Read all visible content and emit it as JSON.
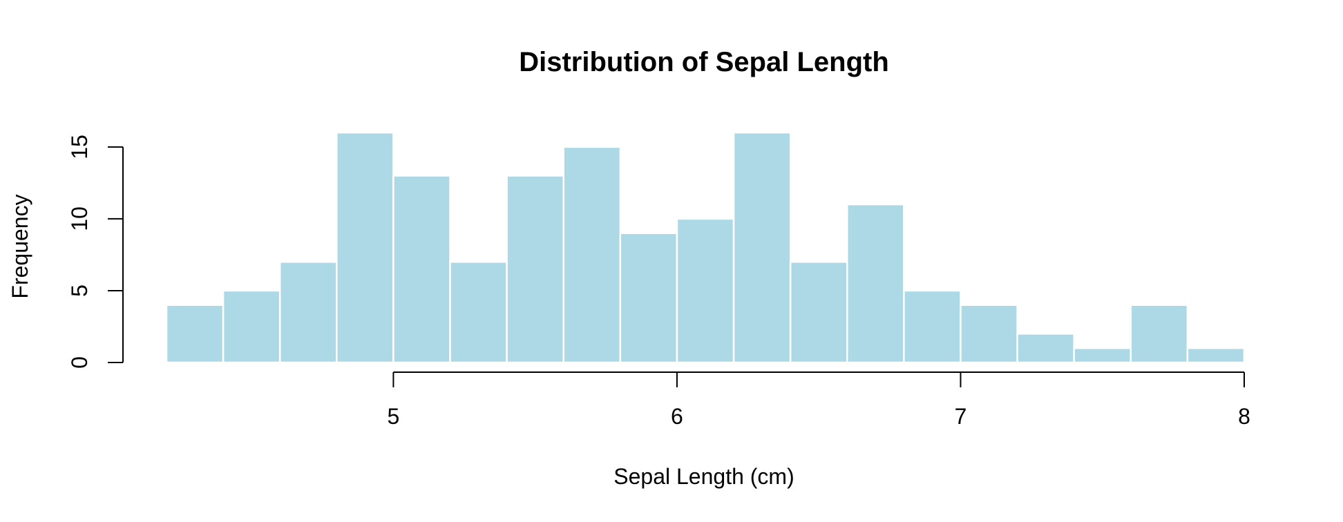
{
  "chart_data": {
    "type": "bar",
    "title": "Distribution of Sepal Length",
    "xlabel": "Sepal Length (cm)",
    "ylabel": "Frequency",
    "bin_edges": [
      4.2,
      4.4,
      4.6,
      4.8,
      5.0,
      5.2,
      5.4,
      5.6,
      5.8,
      6.0,
      6.2,
      6.4,
      6.6,
      6.8,
      7.0,
      7.2,
      7.4,
      7.6,
      7.8,
      8.0
    ],
    "values": [
      4,
      5,
      7,
      16,
      13,
      7,
      13,
      15,
      9,
      10,
      16,
      7,
      11,
      5,
      4,
      2,
      1,
      4,
      1
    ],
    "xticks": [
      5,
      6,
      7,
      8
    ],
    "xtick_labels": [
      "5",
      "6",
      "7",
      "8"
    ],
    "yticks": [
      0,
      5,
      10,
      15
    ],
    "ytick_labels": [
      "0",
      "5",
      "10",
      "15"
    ],
    "xlim": [
      4.2,
      8.0
    ],
    "ylim": [
      0,
      16
    ],
    "grid": false,
    "bar_color": "#ADD8E6",
    "edge_color": "#FFFFFF"
  }
}
